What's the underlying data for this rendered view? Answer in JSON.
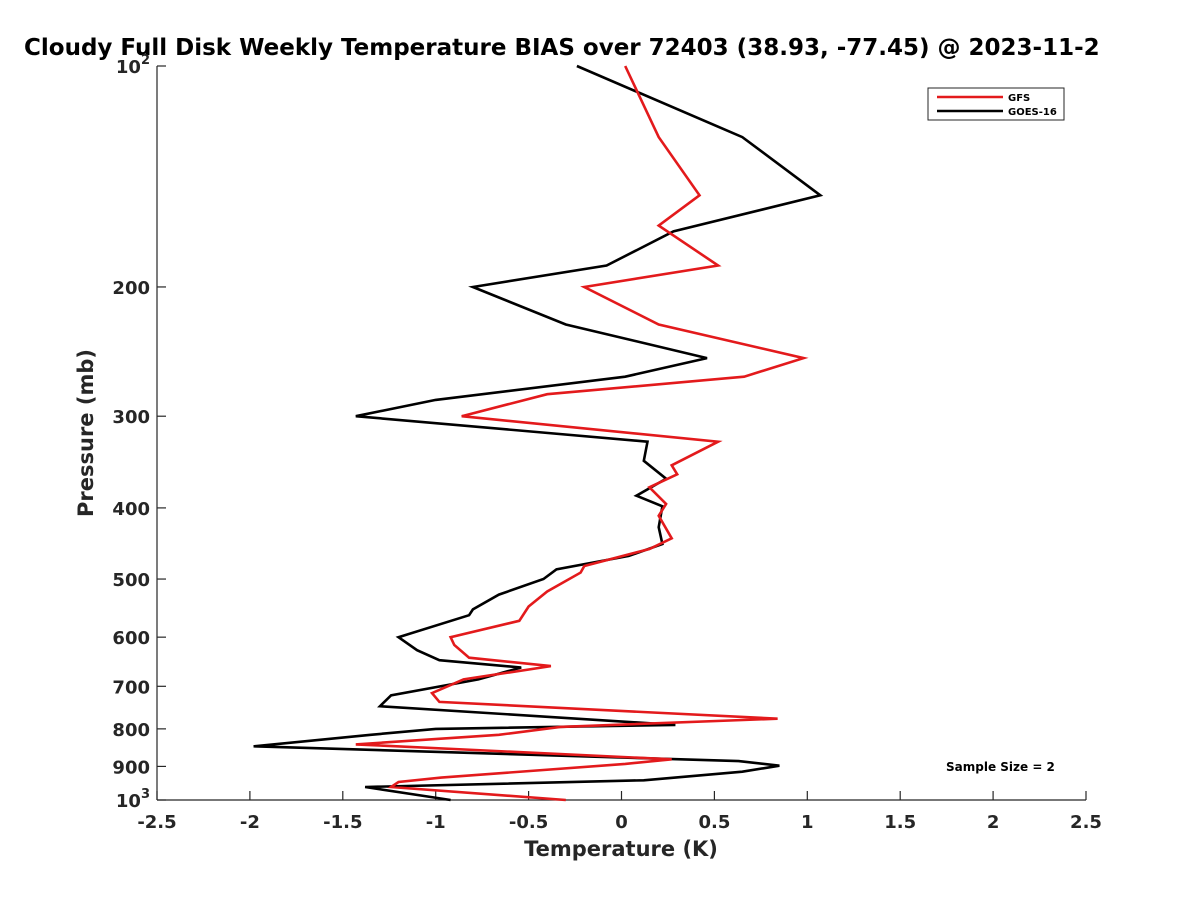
{
  "chart_data": {
    "type": "line",
    "title": "Cloudy Full Disk Weekly Temperature BIAS over 72403 (38.93, -77.45) @ 2023-11-2",
    "xlabel": "Temperature (K)",
    "ylabel": "Pressure (mb)",
    "xlim": [
      -2.5,
      2.5
    ],
    "ylim": [
      100,
      1000
    ],
    "y_scale": "log",
    "y_reversed": true,
    "x_ticks": [
      -2.5,
      -2,
      -1.5,
      -1,
      -0.5,
      0,
      0.5,
      1,
      1.5,
      2,
      2.5
    ],
    "x_tick_labels": [
      "-2.5",
      "-2",
      "-1.5",
      "-1",
      "-0.5",
      "0",
      "0.5",
      "1",
      "1.5",
      "2",
      "2.5"
    ],
    "y_ticks": [
      {
        "value": 100,
        "base": "10",
        "exp": "2"
      },
      {
        "value": 200,
        "label": "200"
      },
      {
        "value": 300,
        "label": "300"
      },
      {
        "value": 400,
        "label": "400"
      },
      {
        "value": 500,
        "label": "500"
      },
      {
        "value": 600,
        "label": "600"
      },
      {
        "value": 700,
        "label": "700"
      },
      {
        "value": 800,
        "label": "800"
      },
      {
        "value": 900,
        "label": "900"
      },
      {
        "value": 1000,
        "base": "10",
        "exp": "3"
      }
    ],
    "legend_position": "top-right",
    "annotation": "Sample Size = 2",
    "series": [
      {
        "name": "GFS",
        "color": "#e31a1c",
        "points": [
          [
            0.02,
            100
          ],
          [
            0.2,
            125
          ],
          [
            0.42,
            150
          ],
          [
            0.2,
            165
          ],
          [
            0.52,
            187
          ],
          [
            -0.2,
            200
          ],
          [
            0.2,
            225
          ],
          [
            0.98,
            250
          ],
          [
            0.66,
            265
          ],
          [
            -0.4,
            280
          ],
          [
            -0.86,
            300
          ],
          [
            0.52,
            325
          ],
          [
            0.27,
            350
          ],
          [
            0.3,
            360
          ],
          [
            0.15,
            375
          ],
          [
            0.24,
            395
          ],
          [
            0.2,
            410
          ],
          [
            0.27,
            440
          ],
          [
            0.15,
            455
          ],
          [
            -0.2,
            480
          ],
          [
            -0.22,
            490
          ],
          [
            -0.4,
            520
          ],
          [
            -0.5,
            545
          ],
          [
            -0.55,
            570
          ],
          [
            -0.92,
            600
          ],
          [
            -0.9,
            615
          ],
          [
            -0.82,
            640
          ],
          [
            -0.38,
            657
          ],
          [
            -0.85,
            685
          ],
          [
            -1.02,
            715
          ],
          [
            -0.98,
            735
          ],
          [
            0.84,
            775
          ],
          [
            -0.33,
            795
          ],
          [
            -0.66,
            815
          ],
          [
            -1.43,
            840
          ],
          [
            0.27,
            880
          ],
          [
            0.02,
            893
          ],
          [
            -0.97,
            932
          ],
          [
            -1.2,
            945
          ],
          [
            -1.24,
            960
          ],
          [
            -0.3,
            1000
          ]
        ]
      },
      {
        "name": "GOES-16",
        "color": "#000000",
        "points": [
          [
            -0.24,
            100
          ],
          [
            0.65,
            125
          ],
          [
            1.07,
            150
          ],
          [
            0.28,
            168
          ],
          [
            -0.08,
            187
          ],
          [
            -0.8,
            200
          ],
          [
            -0.3,
            225
          ],
          [
            0.46,
            250
          ],
          [
            0.02,
            265
          ],
          [
            -1.0,
            285
          ],
          [
            -1.43,
            300
          ],
          [
            0.14,
            325
          ],
          [
            0.12,
            345
          ],
          [
            0.24,
            365
          ],
          [
            0.08,
            385
          ],
          [
            0.22,
            398
          ],
          [
            0.2,
            425
          ],
          [
            0.22,
            448
          ],
          [
            0.04,
            465
          ],
          [
            -0.35,
            485
          ],
          [
            -0.42,
            500
          ],
          [
            -0.66,
            525
          ],
          [
            -0.8,
            550
          ],
          [
            -0.82,
            560
          ],
          [
            -1.2,
            600
          ],
          [
            -1.1,
            625
          ],
          [
            -0.98,
            645
          ],
          [
            -0.54,
            660
          ],
          [
            -0.77,
            685
          ],
          [
            -1.24,
            720
          ],
          [
            -1.3,
            745
          ],
          [
            0.29,
            790
          ],
          [
            -1.0,
            800
          ],
          [
            -1.35,
            815
          ],
          [
            -1.98,
            845
          ],
          [
            0.63,
            885
          ],
          [
            0.85,
            898
          ],
          [
            0.65,
            915
          ],
          [
            0.12,
            940
          ],
          [
            -1.38,
            960
          ],
          [
            -0.92,
            1000
          ]
        ]
      }
    ]
  }
}
